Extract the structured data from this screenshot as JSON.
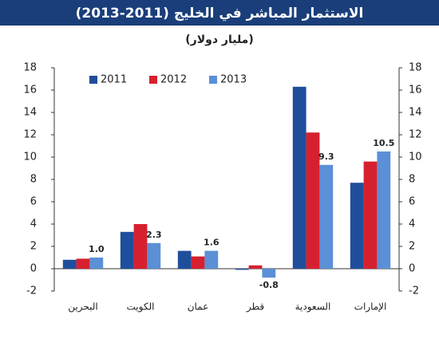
{
  "chart_data": {
    "type": "bar",
    "title": "الاستثمار المباشر في الخليج (2011-2013)",
    "subtitle": "(مليار دولار)",
    "categories": [
      "البحرين",
      "الكويت",
      "عمان",
      "قطر",
      "السعودية",
      "الإمارات"
    ],
    "series": [
      {
        "name": "2011",
        "color": "#1f4e9c",
        "values": [
          0.8,
          3.3,
          1.6,
          -0.1,
          16.3,
          7.7
        ]
      },
      {
        "name": "2012",
        "color": "#d7202f",
        "values": [
          0.9,
          4.0,
          1.1,
          0.3,
          12.2,
          9.6
        ]
      },
      {
        "name": "2013",
        "color": "#5b8fd6",
        "values": [
          1.0,
          2.3,
          1.6,
          -0.8,
          9.3,
          10.5
        ],
        "value_labels": [
          "1.0",
          "2.3",
          "1.6",
          "-0.8",
          "9.3",
          "10.5"
        ]
      }
    ],
    "ylim": [
      -2,
      18
    ],
    "yticks": [
      -2,
      0,
      2,
      4,
      6,
      8,
      10,
      12,
      14,
      16,
      18
    ],
    "y2lim": [
      -2,
      18
    ],
    "y2ticks": [
      -2,
      0,
      2,
      4,
      6,
      8,
      10,
      12,
      14,
      16,
      18
    ],
    "legend": "top-left"
  }
}
